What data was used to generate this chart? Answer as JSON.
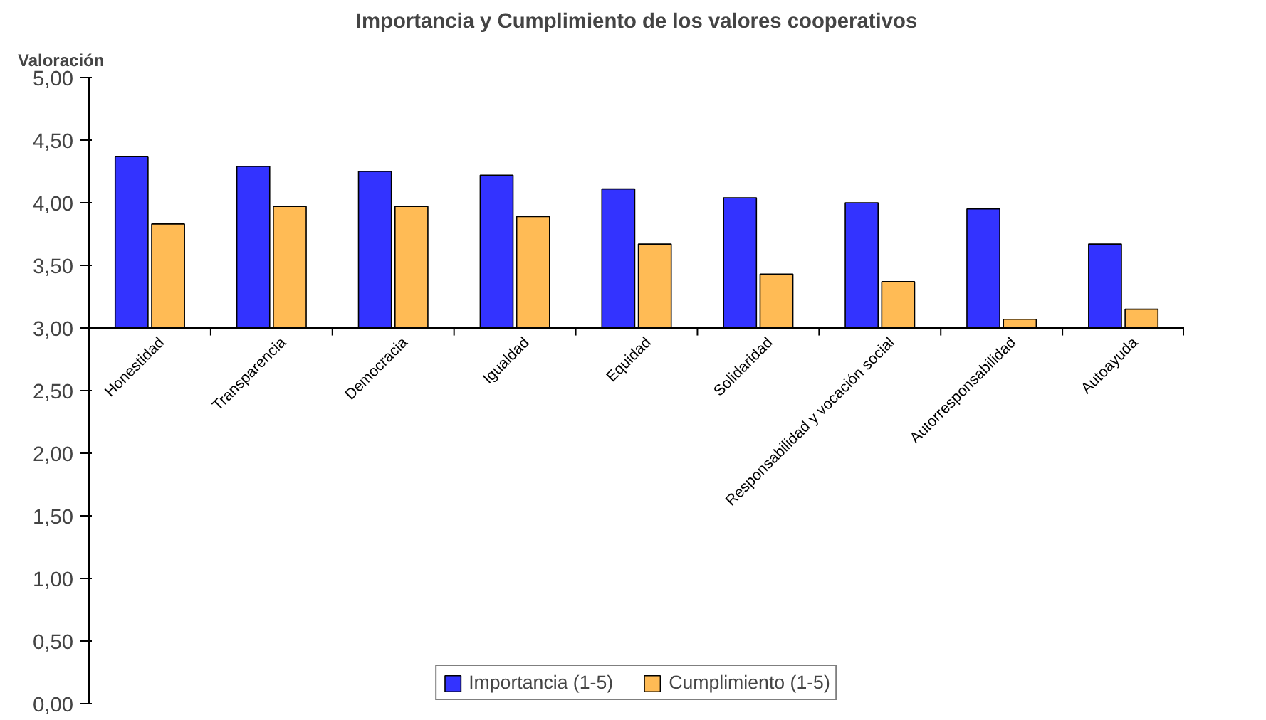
{
  "chart_data": {
    "type": "bar",
    "title": "Importancia y Cumplimiento de los valores cooperativos",
    "ylabel": "Valoración",
    "categories": [
      "Honestidad",
      "Transparencia",
      "Democracia",
      "Igualdad",
      "Equidad",
      "Solidaridad",
      "Responsabilidad y vocación social",
      "Autorresponsabilidad",
      "Autoayuda"
    ],
    "series": [
      {
        "name": "Importancia (1-5)",
        "color": "#3333ff",
        "base": [
          3,
          3,
          3,
          3,
          3,
          3,
          3,
          3,
          3
        ],
        "values": [
          1.37,
          1.29,
          1.25,
          1.22,
          1.11,
          1.04,
          1.0,
          0.95,
          0.67
        ]
      },
      {
        "name": "Cumplimiento (1-5)",
        "color": "#ffbb55",
        "base": [
          3,
          3,
          3,
          3,
          3,
          3,
          3,
          3,
          3
        ],
        "values": [
          0.83,
          0.97,
          0.97,
          0.89,
          0.67,
          0.43,
          0.37,
          0.07,
          0.15
        ]
      }
    ],
    "ylim": [
      0,
      5
    ],
    "yticks": [
      {
        "value": 0,
        "label": "0,00"
      },
      {
        "value": 0.5,
        "label": "0,50"
      },
      {
        "value": 1,
        "label": "1,00"
      },
      {
        "value": 1.5,
        "label": "1,50"
      },
      {
        "value": 2,
        "label": "2,00"
      },
      {
        "value": 2.5,
        "label": "2,50"
      },
      {
        "value": 3,
        "label": "3,00"
      },
      {
        "value": 3.5,
        "label": "3,50"
      },
      {
        "value": 4,
        "label": "4,00"
      },
      {
        "value": 4.5,
        "label": "4,50"
      },
      {
        "value": 5,
        "label": "5,00"
      }
    ],
    "grid": false,
    "legend": "bottom"
  }
}
